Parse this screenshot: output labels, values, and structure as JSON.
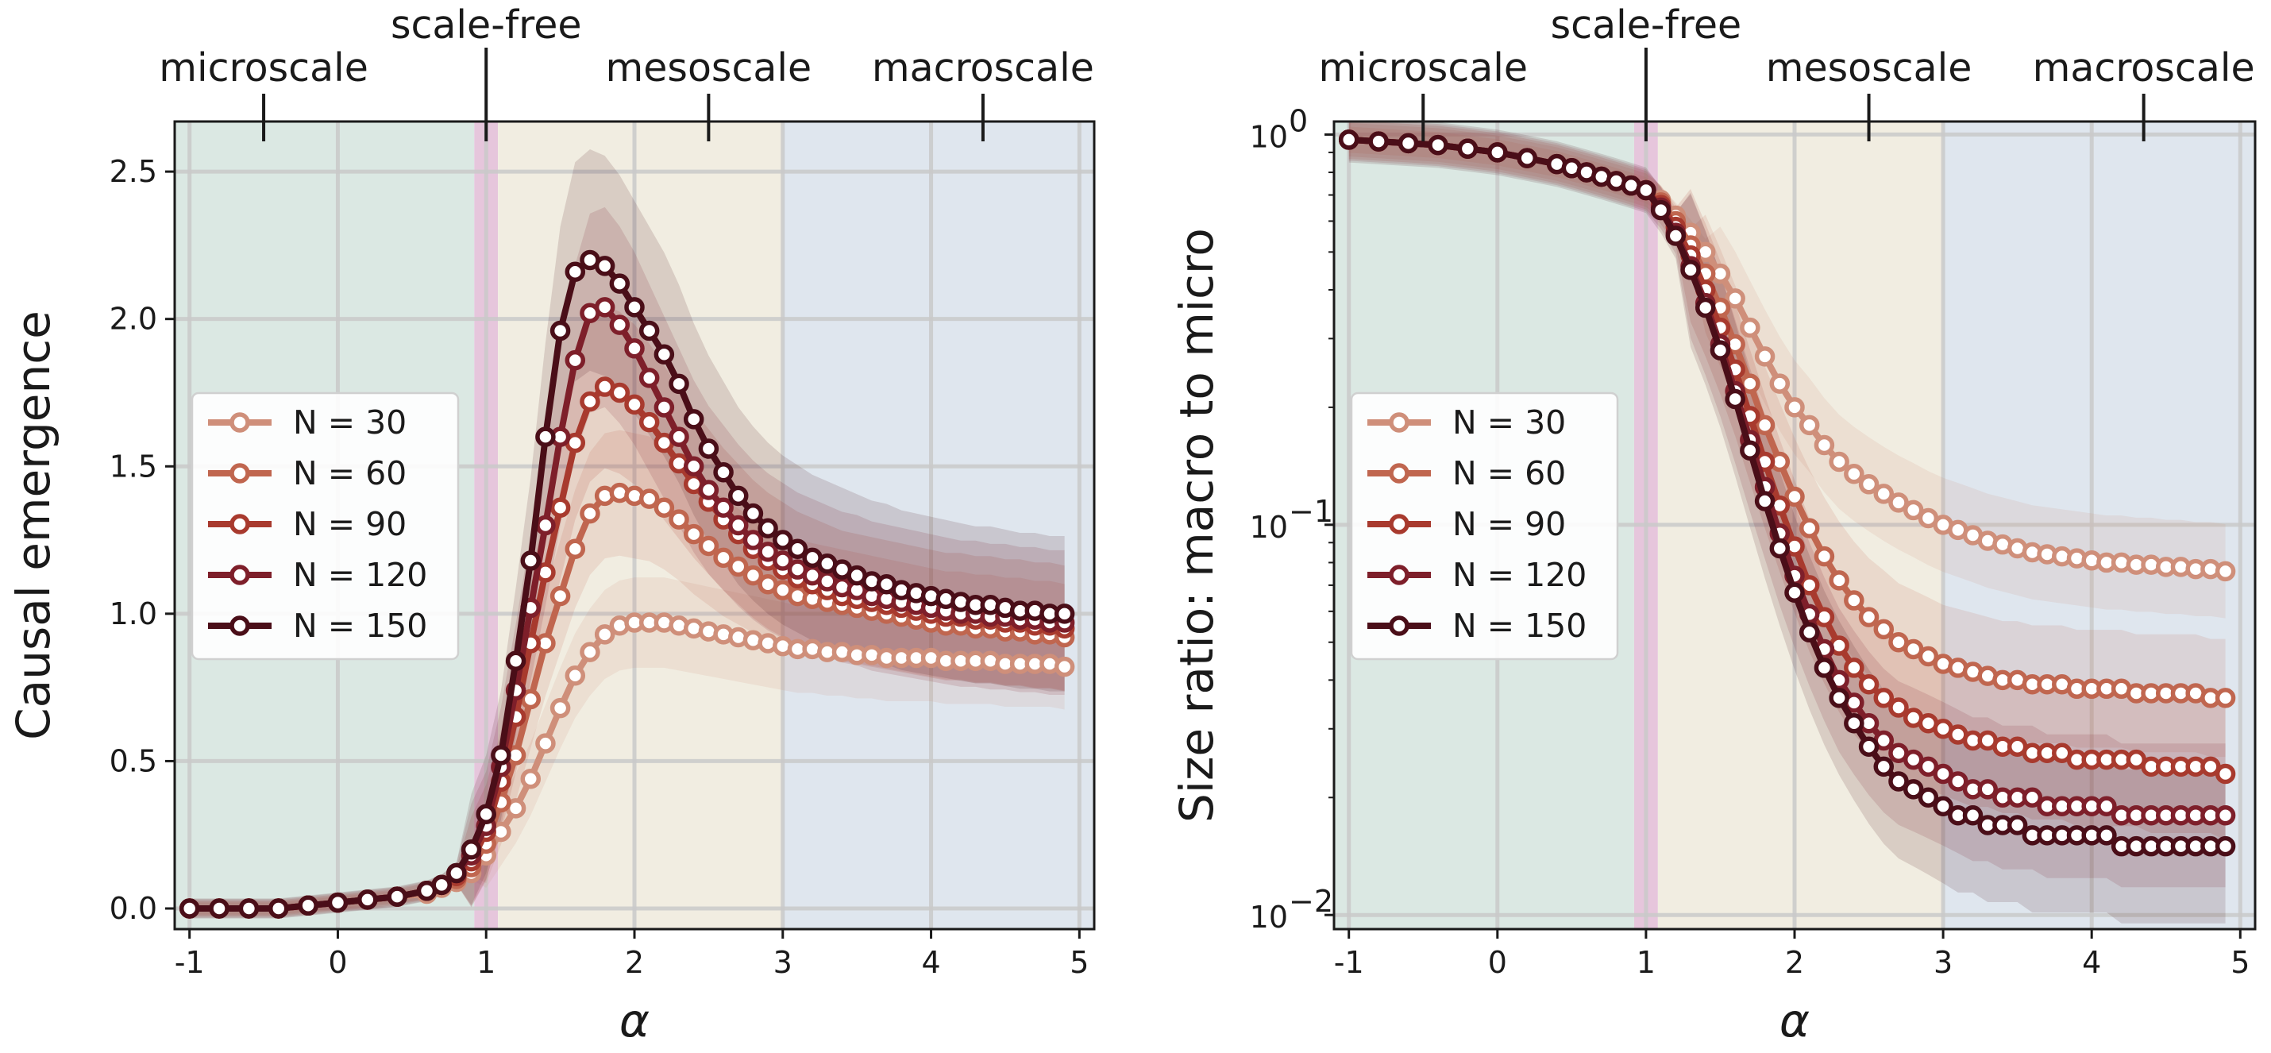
{
  "chart_data": [
    {
      "type": "line",
      "id": "left",
      "xlabel": "α",
      "ylabel": "Causal emergence",
      "yscale": "linear",
      "xlim": [
        -1.1,
        5.1
      ],
      "ylim": [
        -0.07,
        2.67
      ],
      "xticks": [
        -1,
        0,
        1,
        2,
        3,
        4,
        5
      ],
      "xtick_labels": [
        "-1",
        "0",
        "1",
        "2",
        "3",
        "4",
        "5"
      ],
      "yticks": [
        0.0,
        0.5,
        1.0,
        1.5,
        2.0,
        2.5
      ],
      "ytick_labels": [
        "0.0",
        "0.5",
        "1.0",
        "1.5",
        "2.0",
        "2.5"
      ],
      "regions": [
        {
          "name": "microscale",
          "x0": -1.1,
          "x1": 0.92,
          "color": "#dbe8e3"
        },
        {
          "name": "scale-free",
          "x0": 0.92,
          "x1": 1.08,
          "color": "#e6c6dc"
        },
        {
          "name": "mesoscale",
          "x0": 1.08,
          "x1": 3.0,
          "color": "#f1ede1"
        },
        {
          "name": "macroscale",
          "x0": 3.0,
          "x1": 5.1,
          "color": "#dfe6ee"
        }
      ],
      "top_labels": [
        {
          "text": "microscale",
          "x": -0.5,
          "row": "low"
        },
        {
          "text": "scale-free",
          "x": 1.0,
          "row": "high"
        },
        {
          "text": "mesoscale",
          "x": 2.5,
          "row": "low"
        },
        {
          "text": "macroscale",
          "x": 4.35,
          "row": "low"
        }
      ],
      "x": [
        -1.0,
        -0.8,
        -0.6,
        -0.4,
        -0.2,
        0.0,
        0.2,
        0.4,
        0.6,
        0.7,
        0.8,
        0.9,
        1.0,
        1.1,
        1.2,
        1.3,
        1.4,
        1.5,
        1.6,
        1.7,
        1.8,
        1.9,
        2.0,
        2.1,
        2.2,
        2.3,
        2.4,
        2.5,
        2.6,
        2.7,
        2.8,
        2.9,
        3.0,
        3.1,
        3.2,
        3.3,
        3.4,
        3.5,
        3.6,
        3.7,
        3.8,
        3.9,
        4.0,
        4.1,
        4.2,
        4.3,
        4.4,
        4.5,
        4.6,
        4.7,
        4.8,
        4.9
      ],
      "series": [
        {
          "name": "N = 30",
          "color": "#cf8f7a",
          "band": 0.1,
          "values": [
            0.0,
            0.0,
            0.0,
            0.0,
            0.01,
            0.02,
            0.03,
            0.04,
            0.05,
            0.07,
            0.09,
            0.12,
            0.18,
            0.26,
            0.34,
            0.44,
            0.56,
            0.68,
            0.79,
            0.87,
            0.93,
            0.96,
            0.97,
            0.97,
            0.97,
            0.96,
            0.95,
            0.94,
            0.93,
            0.92,
            0.91,
            0.9,
            0.89,
            0.88,
            0.88,
            0.87,
            0.87,
            0.86,
            0.86,
            0.85,
            0.85,
            0.85,
            0.85,
            0.84,
            0.84,
            0.84,
            0.84,
            0.83,
            0.83,
            0.83,
            0.83,
            0.82
          ]
        },
        {
          "name": "N = 60",
          "color": "#c0664f",
          "band": 0.12,
          "values": [
            0.0,
            0.0,
            0.0,
            0.0,
            0.01,
            0.02,
            0.03,
            0.04,
            0.06,
            0.08,
            0.1,
            0.14,
            0.22,
            0.36,
            0.52,
            0.71,
            0.9,
            1.06,
            1.22,
            1.34,
            1.4,
            1.41,
            1.4,
            1.39,
            1.36,
            1.32,
            1.27,
            1.23,
            1.19,
            1.16,
            1.13,
            1.1,
            1.08,
            1.06,
            1.05,
            1.04,
            1.03,
            1.02,
            1.01,
            1.0,
            0.99,
            0.98,
            0.97,
            0.96,
            0.96,
            0.95,
            0.95,
            0.94,
            0.94,
            0.93,
            0.93,
            0.92
          ]
        },
        {
          "name": "N = 90",
          "color": "#a83a2e",
          "band": 0.14,
          "values": [
            0.0,
            0.0,
            0.0,
            0.0,
            0.01,
            0.02,
            0.03,
            0.04,
            0.06,
            0.08,
            0.11,
            0.16,
            0.26,
            0.43,
            0.65,
            0.9,
            1.14,
            1.36,
            1.58,
            1.72,
            1.77,
            1.75,
            1.71,
            1.65,
            1.58,
            1.51,
            1.44,
            1.38,
            1.32,
            1.27,
            1.22,
            1.18,
            1.15,
            1.12,
            1.1,
            1.08,
            1.06,
            1.05,
            1.04,
            1.03,
            1.02,
            1.01,
            1.0,
            0.99,
            0.99,
            0.98,
            0.98,
            0.97,
            0.97,
            0.96,
            0.96,
            0.95
          ]
        },
        {
          "name": "N = 120",
          "color": "#7e1f2a",
          "band": 0.16,
          "values": [
            0.0,
            0.0,
            0.0,
            0.0,
            0.01,
            0.02,
            0.03,
            0.04,
            0.06,
            0.08,
            0.12,
            0.18,
            0.28,
            0.48,
            0.74,
            1.02,
            1.3,
            1.6,
            1.86,
            2.02,
            2.04,
            1.98,
            1.9,
            1.8,
            1.7,
            1.6,
            1.5,
            1.42,
            1.36,
            1.3,
            1.25,
            1.21,
            1.18,
            1.15,
            1.13,
            1.11,
            1.09,
            1.08,
            1.06,
            1.05,
            1.04,
            1.03,
            1.02,
            1.01,
            1.0,
            1.0,
            0.99,
            0.99,
            0.98,
            0.98,
            0.97,
            0.97
          ]
        },
        {
          "name": "N = 150",
          "color": "#4a0e18",
          "band": 0.17,
          "values": [
            0.0,
            0.0,
            0.0,
            0.0,
            0.01,
            0.02,
            0.03,
            0.04,
            0.06,
            0.08,
            0.12,
            0.2,
            0.32,
            0.52,
            0.84,
            1.18,
            1.6,
            1.96,
            2.16,
            2.2,
            2.18,
            2.12,
            2.04,
            1.96,
            1.88,
            1.78,
            1.66,
            1.56,
            1.48,
            1.4,
            1.34,
            1.29,
            1.25,
            1.22,
            1.19,
            1.17,
            1.15,
            1.13,
            1.11,
            1.1,
            1.08,
            1.07,
            1.06,
            1.05,
            1.04,
            1.03,
            1.03,
            1.02,
            1.01,
            1.01,
            1.0,
            1.0
          ]
        }
      ],
      "legend": "center-left"
    },
    {
      "type": "line",
      "id": "right",
      "xlabel": "α",
      "ylabel": "Size ratio: macro to micro",
      "yscale": "log",
      "xlim": [
        -1.1,
        5.1
      ],
      "ylim": [
        0.0092,
        1.08
      ],
      "xticks": [
        -1,
        0,
        1,
        2,
        3,
        4,
        5
      ],
      "xtick_labels": [
        "-1",
        "0",
        "1",
        "2",
        "3",
        "4",
        "5"
      ],
      "yticks": [
        0.01,
        0.1,
        1.0
      ],
      "ytick_labels": [
        {
          "base": "10",
          "exp": "−2"
        },
        {
          "base": "10",
          "exp": "−1"
        },
        {
          "base": "10",
          "exp": "0"
        }
      ],
      "regions": [
        {
          "name": "microscale",
          "x0": -1.1,
          "x1": 0.92,
          "color": "#dbe8e3"
        },
        {
          "name": "scale-free",
          "x0": 0.92,
          "x1": 1.08,
          "color": "#e6c6dc"
        },
        {
          "name": "mesoscale",
          "x0": 1.08,
          "x1": 3.0,
          "color": "#f1ede1"
        },
        {
          "name": "macroscale",
          "x0": 3.0,
          "x1": 5.1,
          "color": "#dfe6ee"
        }
      ],
      "top_labels": [
        {
          "text": "microscale",
          "x": -0.5,
          "row": "low"
        },
        {
          "text": "scale-free",
          "x": 1.0,
          "row": "high"
        },
        {
          "text": "mesoscale",
          "x": 2.5,
          "row": "low"
        },
        {
          "text": "macroscale",
          "x": 4.35,
          "row": "low"
        }
      ],
      "x": [
        -1.0,
        -0.8,
        -0.6,
        -0.4,
        -0.2,
        0.0,
        0.2,
        0.4,
        0.5,
        0.6,
        0.7,
        0.8,
        0.9,
        1.0,
        1.1,
        1.2,
        1.3,
        1.4,
        1.5,
        1.6,
        1.7,
        1.8,
        1.9,
        2.0,
        2.1,
        2.2,
        2.3,
        2.4,
        2.5,
        2.6,
        2.7,
        2.8,
        2.9,
        3.0,
        3.1,
        3.2,
        3.3,
        3.4,
        3.5,
        3.6,
        3.7,
        3.8,
        3.9,
        4.0,
        4.1,
        4.2,
        4.3,
        4.4,
        4.5,
        4.6,
        4.7,
        4.8,
        4.9
      ],
      "series": [
        {
          "name": "N = 30",
          "color": "#cf8f7a",
          "band": 0.2,
          "values": [
            0.97,
            0.96,
            0.95,
            0.94,
            0.92,
            0.9,
            0.87,
            0.84,
            0.82,
            0.8,
            0.78,
            0.76,
            0.74,
            0.72,
            0.68,
            0.62,
            0.56,
            0.5,
            0.44,
            0.38,
            0.32,
            0.27,
            0.23,
            0.2,
            0.18,
            0.16,
            0.145,
            0.135,
            0.127,
            0.12,
            0.114,
            0.109,
            0.104,
            0.1,
            0.097,
            0.094,
            0.091,
            0.089,
            0.087,
            0.085,
            0.084,
            0.083,
            0.082,
            0.081,
            0.08,
            0.08,
            0.079,
            0.079,
            0.078,
            0.078,
            0.077,
            0.077,
            0.076
          ]
        },
        {
          "name": "N = 60",
          "color": "#c0664f",
          "band": 0.26,
          "values": [
            0.97,
            0.96,
            0.95,
            0.94,
            0.92,
            0.9,
            0.87,
            0.84,
            0.82,
            0.8,
            0.78,
            0.76,
            0.74,
            0.72,
            0.67,
            0.6,
            0.52,
            0.44,
            0.36,
            0.29,
            0.23,
            0.18,
            0.145,
            0.118,
            0.098,
            0.083,
            0.072,
            0.064,
            0.058,
            0.054,
            0.05,
            0.048,
            0.046,
            0.044,
            0.043,
            0.042,
            0.041,
            0.04,
            0.04,
            0.039,
            0.039,
            0.039,
            0.038,
            0.038,
            0.038,
            0.038,
            0.037,
            0.037,
            0.037,
            0.037,
            0.037,
            0.036,
            0.036
          ]
        },
        {
          "name": "N = 90",
          "color": "#a83a2e",
          "band": 0.3,
          "values": [
            0.97,
            0.96,
            0.95,
            0.94,
            0.92,
            0.9,
            0.87,
            0.84,
            0.82,
            0.8,
            0.78,
            0.76,
            0.74,
            0.72,
            0.66,
            0.58,
            0.49,
            0.4,
            0.32,
            0.25,
            0.19,
            0.145,
            0.112,
            0.088,
            0.07,
            0.058,
            0.049,
            0.043,
            0.039,
            0.036,
            0.034,
            0.032,
            0.031,
            0.03,
            0.029,
            0.028,
            0.028,
            0.027,
            0.027,
            0.026,
            0.026,
            0.026,
            0.025,
            0.025,
            0.025,
            0.025,
            0.025,
            0.024,
            0.024,
            0.024,
            0.024,
            0.024,
            0.023
          ]
        },
        {
          "name": "N = 120",
          "color": "#7e1f2a",
          "band": 0.33,
          "values": [
            0.97,
            0.96,
            0.95,
            0.94,
            0.92,
            0.9,
            0.87,
            0.84,
            0.82,
            0.8,
            0.78,
            0.76,
            0.74,
            0.72,
            0.65,
            0.56,
            0.46,
            0.37,
            0.29,
            0.22,
            0.165,
            0.125,
            0.095,
            0.074,
            0.059,
            0.048,
            0.04,
            0.035,
            0.031,
            0.028,
            0.026,
            0.025,
            0.024,
            0.023,
            0.022,
            0.021,
            0.021,
            0.02,
            0.02,
            0.02,
            0.019,
            0.019,
            0.019,
            0.019,
            0.019,
            0.018,
            0.018,
            0.018,
            0.018,
            0.018,
            0.018,
            0.018,
            0.018
          ]
        },
        {
          "name": "N = 150",
          "color": "#4a0e18",
          "band": 0.36,
          "values": [
            0.97,
            0.96,
            0.95,
            0.94,
            0.92,
            0.9,
            0.87,
            0.84,
            0.82,
            0.8,
            0.78,
            0.76,
            0.74,
            0.72,
            0.64,
            0.55,
            0.45,
            0.36,
            0.28,
            0.21,
            0.155,
            0.115,
            0.087,
            0.067,
            0.053,
            0.043,
            0.036,
            0.031,
            0.027,
            0.024,
            0.022,
            0.021,
            0.02,
            0.019,
            0.018,
            0.018,
            0.017,
            0.017,
            0.017,
            0.016,
            0.016,
            0.016,
            0.016,
            0.016,
            0.016,
            0.015,
            0.015,
            0.015,
            0.015,
            0.015,
            0.015,
            0.015,
            0.015
          ]
        }
      ],
      "legend": "center-left"
    }
  ]
}
